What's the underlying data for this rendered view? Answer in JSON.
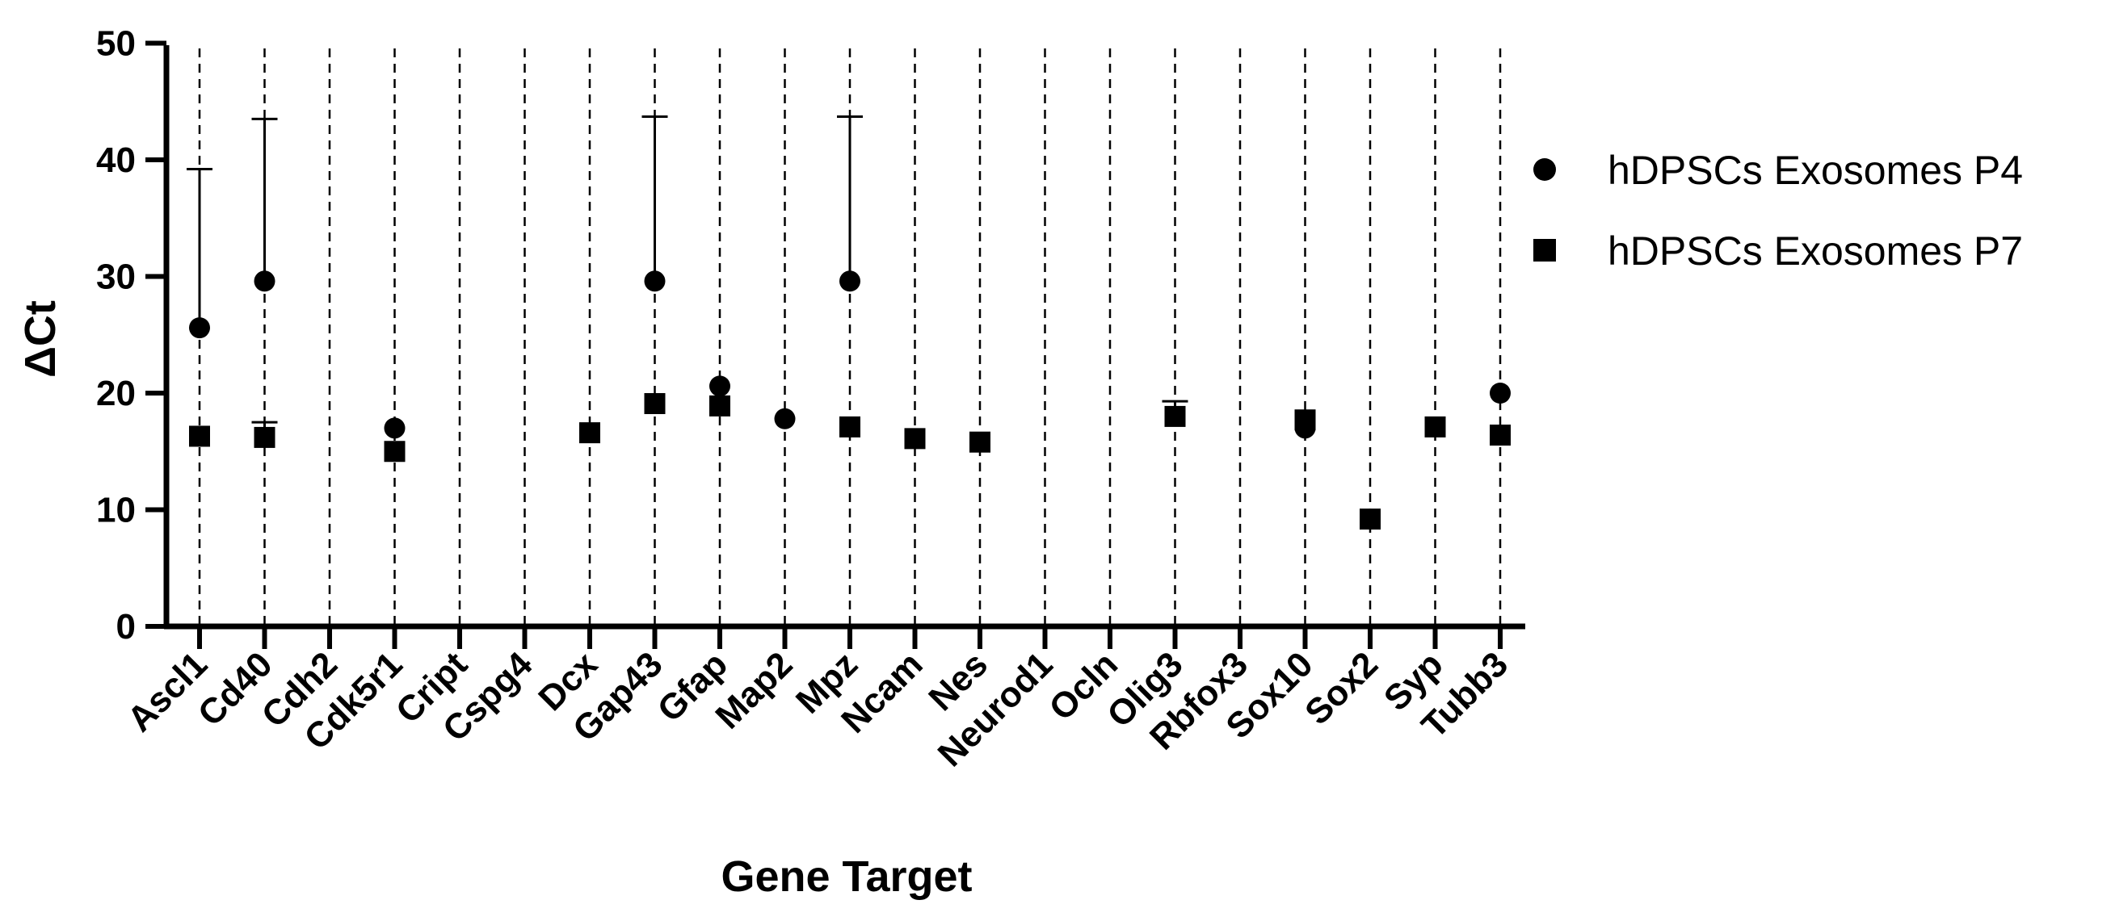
{
  "chart_data": {
    "type": "scatter",
    "title": "",
    "xlabel": "Gene Target",
    "ylabel": "ΔCt",
    "ylim": [
      0,
      50
    ],
    "yticks": [
      0,
      10,
      20,
      30,
      40,
      50
    ],
    "categories": [
      "Ascl1",
      "Cd40",
      "Cdh2",
      "Cdk5r1",
      "Cript",
      "Cspg4",
      "Dcx",
      "Gap43",
      "Gfap",
      "Map2",
      "Mpz",
      "Ncam",
      "Nes",
      "Neurod1",
      "Ocln",
      "Olig3",
      "Rbfox3",
      "Sox10",
      "Sox2",
      "Syp",
      "Tubb3"
    ],
    "grid": "vertical dashed line per category",
    "legend_position": "right",
    "series": [
      {
        "name": "hDPSCs Exosomes P4",
        "marker": "circle",
        "color": "#000000",
        "values": [
          25.6,
          29.6,
          null,
          17.0,
          null,
          null,
          null,
          29.6,
          20.6,
          17.8,
          29.6,
          null,
          null,
          null,
          null,
          null,
          null,
          17.0,
          null,
          null,
          20.0
        ],
        "error_upper": [
          39.2,
          43.5,
          null,
          null,
          null,
          null,
          null,
          43.7,
          null,
          null,
          43.7,
          null,
          null,
          null,
          null,
          null,
          null,
          null,
          null,
          null,
          null
        ]
      },
      {
        "name": "hDPSCs Exosomes P7",
        "marker": "square",
        "color": "#000000",
        "values": [
          16.3,
          16.2,
          null,
          15.0,
          null,
          null,
          16.6,
          19.1,
          18.9,
          null,
          17.1,
          16.1,
          15.8,
          null,
          null,
          18.0,
          null,
          17.7,
          9.2,
          17.1,
          16.4
        ],
        "error_upper": [
          null,
          17.5,
          null,
          null,
          null,
          null,
          null,
          null,
          null,
          null,
          null,
          null,
          null,
          null,
          null,
          19.3,
          null,
          null,
          null,
          null,
          null
        ]
      }
    ]
  }
}
